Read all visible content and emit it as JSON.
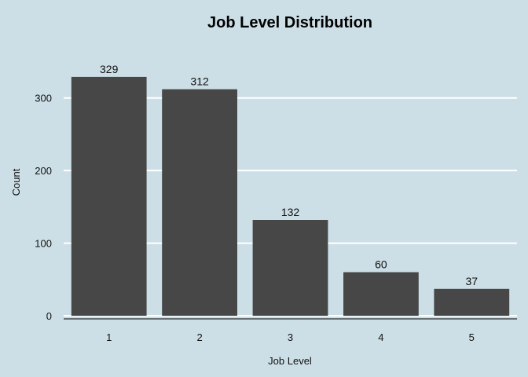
{
  "chart_data": {
    "type": "bar",
    "title": "Job Level Distribution",
    "xlabel": "Job Level",
    "ylabel": "Count",
    "categories": [
      "1",
      "2",
      "3",
      "4",
      "5"
    ],
    "values": [
      329,
      312,
      132,
      60,
      37
    ],
    "data_labels": [
      "329",
      "312",
      "132",
      "60",
      "37"
    ],
    "yticks": [
      0,
      100,
      200,
      300
    ],
    "ytick_labels": [
      "0",
      "100",
      "200",
      "300"
    ],
    "ylim": [
      0,
      345
    ],
    "grid": "horizontal",
    "legend": "none",
    "colors": {
      "background": "#cddfe6",
      "bar": "#474747",
      "grid": "#ffffff",
      "axis": "#000000"
    }
  }
}
